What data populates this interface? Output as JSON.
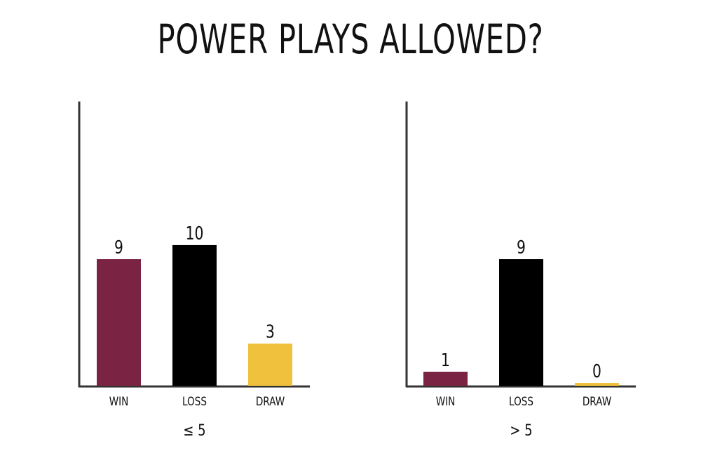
{
  "title": "POWER PLAYS ALLOWED?",
  "colors": {
    "win": "#7a2342",
    "loss": "#000000",
    "draw": "#f0c13d",
    "axis": "#333333"
  },
  "chart_data": [
    {
      "type": "bar",
      "categories": [
        "WIN",
        "LOSS",
        "DRAW"
      ],
      "values": [
        9,
        10,
        3
      ],
      "data_labels": [
        "9",
        "10",
        "3"
      ],
      "group_label": "≤ 5",
      "xlabel": "",
      "ylabel": "",
      "ylim": [
        0,
        19
      ],
      "grid": false,
      "legend": "none"
    },
    {
      "type": "bar",
      "categories": [
        "WIN",
        "LOSS",
        "DRAW"
      ],
      "values": [
        1,
        9,
        0
      ],
      "data_labels": [
        "1",
        "9",
        "0"
      ],
      "group_label": "> 5",
      "xlabel": "",
      "ylabel": "",
      "ylim": [
        0,
        19
      ],
      "grid": false,
      "legend": "none"
    }
  ]
}
